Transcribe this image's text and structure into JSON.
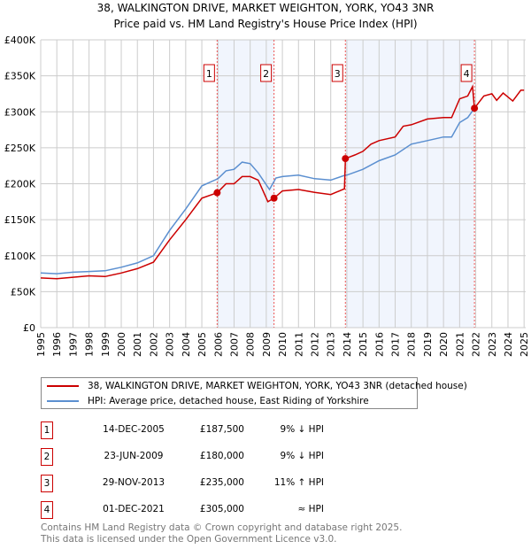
{
  "chart_data": {
    "type": "line",
    "title": "38, WALKINGTON DRIVE, MARKET WEIGHTON, YORK, YO43 3NR",
    "subtitle": "Price paid vs. HM Land Registry's House Price Index (HPI)",
    "xlim": [
      1995,
      2025.1
    ],
    "ylim": [
      0,
      400000
    ],
    "x_ticks": [
      "1995",
      "1996",
      "1997",
      "1998",
      "1999",
      "2000",
      "2001",
      "2002",
      "2003",
      "2004",
      "2005",
      "2006",
      "2007",
      "2008",
      "2009",
      "2010",
      "2011",
      "2012",
      "2013",
      "2014",
      "2015",
      "2016",
      "2017",
      "2018",
      "2019",
      "2020",
      "2021",
      "2022",
      "2023",
      "2024",
      "2025"
    ],
    "y_ticks": [
      {
        "v": 0,
        "l": "£0"
      },
      {
        "v": 50000,
        "l": "£50K"
      },
      {
        "v": 100000,
        "l": "£100K"
      },
      {
        "v": 150000,
        "l": "£150K"
      },
      {
        "v": 200000,
        "l": "£200K"
      },
      {
        "v": 250000,
        "l": "£250K"
      },
      {
        "v": 300000,
        "l": "£300K"
      },
      {
        "v": 350000,
        "l": "£350K"
      },
      {
        "v": 400000,
        "l": "£400K"
      }
    ],
    "grid": true,
    "shaded_ranges": [
      [
        2005.95,
        2009.48
      ],
      [
        2013.91,
        2021.92
      ]
    ],
    "series": [
      {
        "name": "38, WALKINGTON DRIVE, MARKET WEIGHTON, YORK, YO43 3NR (detached house)",
        "color": "#cc0000",
        "x": [
          1995,
          1996,
          1997,
          1998,
          1999,
          2000,
          2001,
          2002,
          2003,
          2004,
          2005,
          2005.95,
          2006.5,
          2007,
          2007.5,
          2008,
          2008.5,
          2009.1,
          2009.48,
          2010,
          2011,
          2012,
          2013,
          2013.85,
          2013.91,
          2014.5,
          2015,
          2015.5,
          2016,
          2017,
          2017.5,
          2018,
          2019,
          2020,
          2020.5,
          2021,
          2021.5,
          2021.8,
          2021.92,
          2022.5,
          2023,
          2023.3,
          2023.7,
          2024.3,
          2024.8,
          2025
        ],
        "y": [
          69000,
          68000,
          70000,
          72000,
          71000,
          76000,
          82000,
          91000,
          122000,
          150000,
          180000,
          187500,
          200000,
          200000,
          210000,
          210000,
          205000,
          175000,
          180000,
          190000,
          192000,
          188000,
          185000,
          193000,
          235000,
          240000,
          245000,
          255000,
          260000,
          265000,
          280000,
          282000,
          290000,
          292000,
          292000,
          318000,
          322000,
          335000,
          305000,
          322000,
          325000,
          316000,
          326000,
          315000,
          330000,
          330000
        ]
      },
      {
        "name": "HPI: Average price, detached house, East Riding of Yorkshire",
        "color": "#5b8fd0",
        "x": [
          1995,
          1996,
          1997,
          1998,
          1999,
          2000,
          2001,
          2002,
          2003,
          2004,
          2005,
          2006,
          2006.5,
          2007,
          2007.5,
          2008,
          2008.5,
          2009.2,
          2009.6,
          2010,
          2011,
          2012,
          2013,
          2013.9,
          2014,
          2015,
          2016,
          2017,
          2018,
          2019,
          2020,
          2020.5,
          2021,
          2021.5,
          2021.92
        ],
        "y": [
          76000,
          75000,
          77000,
          78000,
          79000,
          84000,
          90000,
          100000,
          135000,
          165000,
          197000,
          207000,
          218000,
          220000,
          230000,
          228000,
          215000,
          192000,
          208000,
          210000,
          212000,
          207000,
          205000,
          212000,
          212000,
          220000,
          232000,
          240000,
          255000,
          260000,
          265000,
          265000,
          285000,
          292000,
          305000
        ]
      }
    ],
    "sales": [
      {
        "num": "1",
        "x": 2005.95,
        "date": "14-DEC-2005",
        "price": "£187,500",
        "value": 187500,
        "hpi": "9% ↓ HPI"
      },
      {
        "num": "2",
        "x": 2009.48,
        "date": "23-JUN-2009",
        "price": "£180,000",
        "value": 180000,
        "hpi": "9% ↓ HPI"
      },
      {
        "num": "3",
        "x": 2013.91,
        "date": "29-NOV-2013",
        "price": "£235,000",
        "value": 235000,
        "hpi": "11% ↑ HPI"
      },
      {
        "num": "4",
        "x": 2021.92,
        "date": "01-DEC-2021",
        "price": "£305,000",
        "value": 305000,
        "hpi": "≈ HPI"
      }
    ]
  },
  "footer": {
    "line1": "Contains HM Land Registry data © Crown copyright and database right 2025.",
    "line2": "This data is licensed under the Open Government Licence v3.0."
  }
}
